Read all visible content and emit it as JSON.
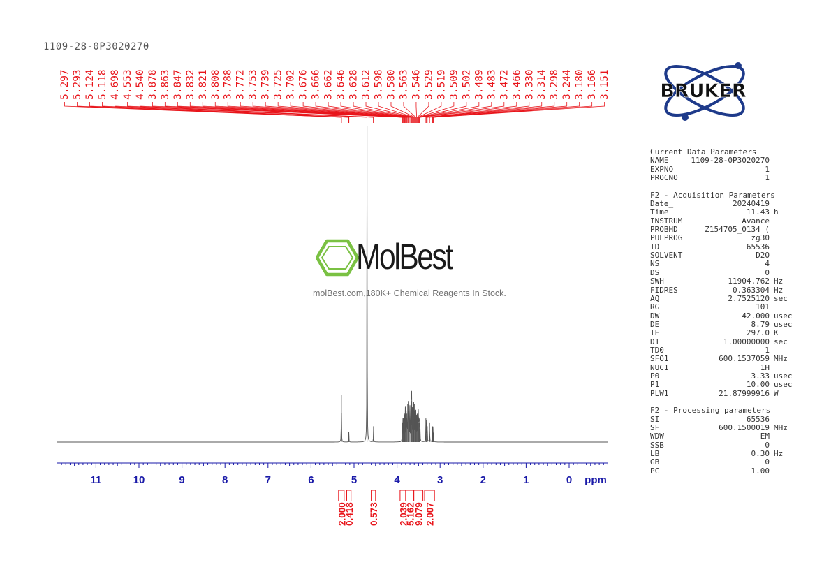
{
  "sample_title": "1109-28-0P3020270",
  "logo": {
    "text": "BRUKER",
    "color": "#1e3a8a"
  },
  "watermark": {
    "name": "MolBest",
    "tagline": "molBest.com,180K+ Chemical Reagents In Stock.",
    "icon": "benzene-ring-icon",
    "icon_color": "#7ac143"
  },
  "parameters": {
    "sections": [
      {
        "title": "Current Data Parameters",
        "rows": [
          {
            "k": "NAME",
            "v": "1109-28-0P3020270",
            "u": ""
          },
          {
            "k": "EXPNO",
            "v": "1",
            "u": ""
          },
          {
            "k": "PROCNO",
            "v": "1",
            "u": ""
          }
        ]
      },
      {
        "title": "F2 - Acquisition Parameters",
        "rows": [
          {
            "k": "Date_",
            "v": "20240419",
            "u": ""
          },
          {
            "k": "Time",
            "v": "11.43",
            "u": "h"
          },
          {
            "k": "INSTRUM",
            "v": "Avance",
            "u": ""
          },
          {
            "k": "PROBHD",
            "v": "Z154705_0134 (",
            "u": ""
          },
          {
            "k": "PULPROG",
            "v": "zg30",
            "u": ""
          },
          {
            "k": "TD",
            "v": "65536",
            "u": ""
          },
          {
            "k": "SOLVENT",
            "v": "D2O",
            "u": ""
          },
          {
            "k": "NS",
            "v": "4",
            "u": ""
          },
          {
            "k": "DS",
            "v": "0",
            "u": ""
          },
          {
            "k": "SWH",
            "v": "11904.762",
            "u": "Hz"
          },
          {
            "k": "FIDRES",
            "v": "0.363304",
            "u": "Hz"
          },
          {
            "k": "AQ",
            "v": "2.7525120",
            "u": "sec"
          },
          {
            "k": "RG",
            "v": "101",
            "u": ""
          },
          {
            "k": "DW",
            "v": "42.000",
            "u": "usec"
          },
          {
            "k": "DE",
            "v": "8.79",
            "u": "usec"
          },
          {
            "k": "TE",
            "v": "297.0",
            "u": "K"
          },
          {
            "k": "D1",
            "v": "1.00000000",
            "u": "sec"
          },
          {
            "k": "TD0",
            "v": "1",
            "u": ""
          },
          {
            "k": "SFO1",
            "v": "600.1537059",
            "u": "MHz"
          },
          {
            "k": "NUC1",
            "v": "1H",
            "u": ""
          },
          {
            "k": "P0",
            "v": "3.33",
            "u": "usec"
          },
          {
            "k": "P1",
            "v": "10.00",
            "u": "usec"
          },
          {
            "k": "PLW1",
            "v": "21.87999916",
            "u": "W"
          }
        ]
      },
      {
        "title": "F2 - Processing parameters",
        "rows": [
          {
            "k": "SI",
            "v": "65536",
            "u": ""
          },
          {
            "k": "SF",
            "v": "600.1500019",
            "u": "MHz"
          },
          {
            "k": "WDW",
            "v": "EM",
            "u": ""
          },
          {
            "k": "SSB",
            "v": "0",
            "u": ""
          },
          {
            "k": "LB",
            "v": "0.30",
            "u": "Hz"
          },
          {
            "k": "GB",
            "v": "0",
            "u": ""
          },
          {
            "k": "PC",
            "v": "1.00",
            "u": ""
          }
        ]
      }
    ]
  },
  "chart_data": {
    "type": "line",
    "xlabel": "ppm",
    "x_direction": "reversed",
    "xlim": [
      12.0,
      -0.9
    ],
    "x_ticks": [
      "11",
      "10",
      "9",
      "8",
      "7",
      "6",
      "5",
      "4",
      "3",
      "2",
      "1",
      "0"
    ],
    "colors": {
      "axis": "#1a1aa8",
      "annotation": "#e8151b",
      "trace": "#555555"
    },
    "peak_labels": [
      "5.297",
      "5.293",
      "5.124",
      "5.118",
      "4.698",
      "4.553",
      "4.540",
      "3.878",
      "3.863",
      "3.847",
      "3.832",
      "3.821",
      "3.808",
      "3.788",
      "3.772",
      "3.753",
      "3.739",
      "3.725",
      "3.702",
      "3.676",
      "3.666",
      "3.662",
      "3.646",
      "3.628",
      "3.612",
      "3.598",
      "3.580",
      "3.563",
      "3.546",
      "3.529",
      "3.519",
      "3.509",
      "3.502",
      "3.489",
      "3.483",
      "3.472",
      "3.466",
      "3.330",
      "3.314",
      "3.298",
      "3.244",
      "3.180",
      "3.166",
      "3.151"
    ],
    "integrals": [
      {
        "value": "2.000",
        "from": 5.36,
        "to": 5.23
      },
      {
        "value": "0.418",
        "from": 5.17,
        "to": 5.07
      },
      {
        "value": "0.573",
        "from": 4.6,
        "to": 4.5
      },
      {
        "value": "2.039",
        "from": 3.93,
        "to": 3.8
      },
      {
        "value": "5.162",
        "from": 3.8,
        "to": 3.61
      },
      {
        "value": "9.079",
        "from": 3.61,
        "to": 3.4
      },
      {
        "value": "2.007",
        "from": 3.36,
        "to": 3.13
      }
    ],
    "peaks": [
      {
        "ppm": 5.295,
        "h": 0.15
      },
      {
        "ppm": 5.121,
        "h": 0.033
      },
      {
        "ppm": 4.698,
        "h": 1.0
      },
      {
        "ppm": 4.547,
        "h": 0.05
      },
      {
        "ppm": 3.878,
        "h": 0.06
      },
      {
        "ppm": 3.863,
        "h": 0.07
      },
      {
        "ppm": 3.847,
        "h": 0.065
      },
      {
        "ppm": 3.832,
        "h": 0.065
      },
      {
        "ppm": 3.821,
        "h": 0.09
      },
      {
        "ppm": 3.808,
        "h": 0.11
      },
      {
        "ppm": 3.788,
        "h": 0.1
      },
      {
        "ppm": 3.772,
        "h": 0.09
      },
      {
        "ppm": 3.753,
        "h": 0.12
      },
      {
        "ppm": 3.739,
        "h": 0.13
      },
      {
        "ppm": 3.725,
        "h": 0.12
      },
      {
        "ppm": 3.702,
        "h": 0.11
      },
      {
        "ppm": 3.676,
        "h": 0.12
      },
      {
        "ppm": 3.666,
        "h": 0.13
      },
      {
        "ppm": 3.662,
        "h": 0.12
      },
      {
        "ppm": 3.646,
        "h": 0.11
      },
      {
        "ppm": 3.628,
        "h": 0.1
      },
      {
        "ppm": 3.612,
        "h": 0.11
      },
      {
        "ppm": 3.598,
        "h": 0.12
      },
      {
        "ppm": 3.58,
        "h": 0.1
      },
      {
        "ppm": 3.563,
        "h": 0.09
      },
      {
        "ppm": 3.546,
        "h": 0.08
      },
      {
        "ppm": 3.529,
        "h": 0.09
      },
      {
        "ppm": 3.519,
        "h": 0.08
      },
      {
        "ppm": 3.509,
        "h": 0.09
      },
      {
        "ppm": 3.502,
        "h": 0.08
      },
      {
        "ppm": 3.489,
        "h": 0.06
      },
      {
        "ppm": 3.483,
        "h": 0.05
      },
      {
        "ppm": 3.472,
        "h": 0.04
      },
      {
        "ppm": 3.466,
        "h": 0.03
      },
      {
        "ppm": 3.33,
        "h": 0.075
      },
      {
        "ppm": 3.314,
        "h": 0.07
      },
      {
        "ppm": 3.298,
        "h": 0.05
      },
      {
        "ppm": 3.244,
        "h": 0.06
      },
      {
        "ppm": 3.18,
        "h": 0.05
      },
      {
        "ppm": 3.166,
        "h": 0.045
      },
      {
        "ppm": 3.151,
        "h": 0.03
      }
    ]
  }
}
